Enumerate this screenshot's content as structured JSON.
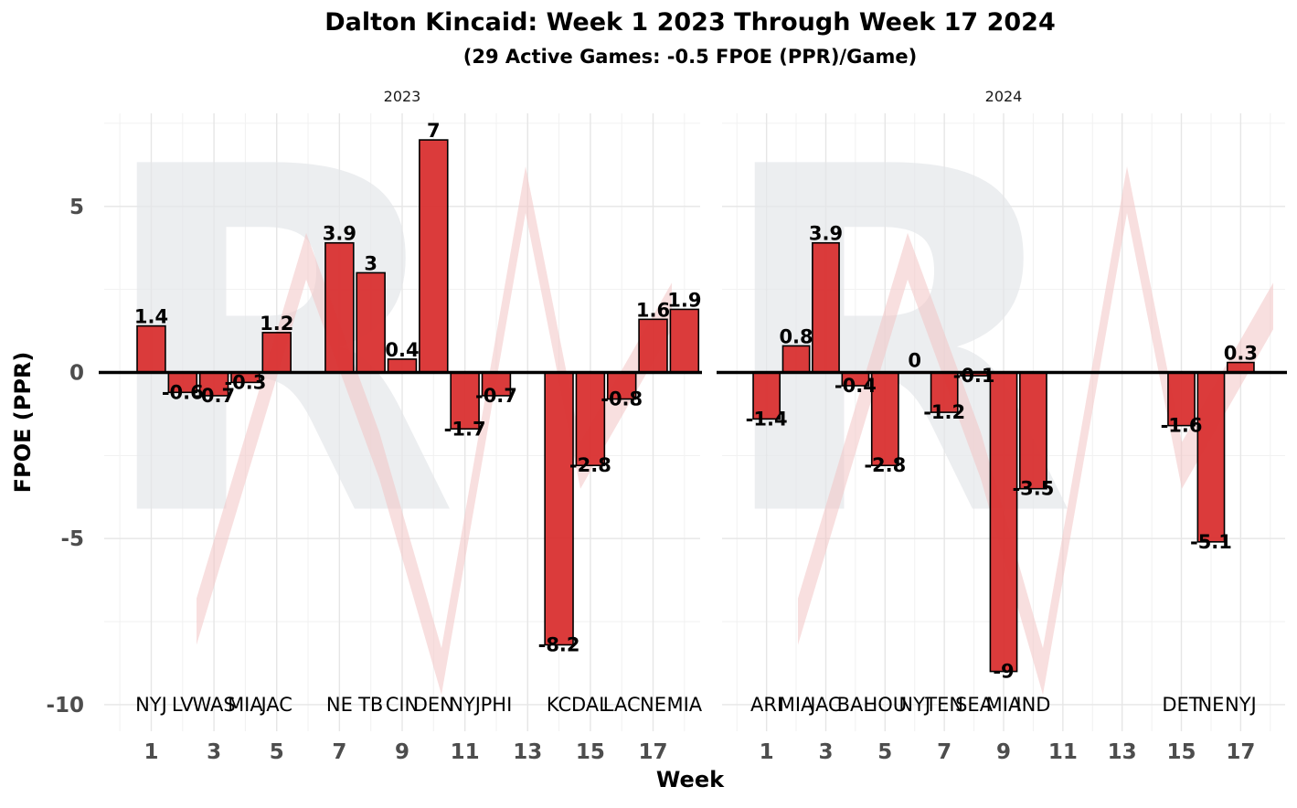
{
  "chart_data": {
    "type": "bar",
    "title": "Dalton Kincaid: Week 1 2023 Through Week 17 2024",
    "subtitle": "(29 Active Games: -0.5 FPOE (PPR)/Game)",
    "xlabel": "Week",
    "ylabel": "FPOE (PPR)",
    "ylim": [
      -10.8,
      7.8
    ],
    "yticks": [
      5,
      0,
      -5,
      -10
    ],
    "yticks_labels": [
      "5",
      "0",
      "-5",
      "-10"
    ],
    "xticks": [
      1,
      3,
      5,
      7,
      9,
      11,
      13,
      15,
      17
    ],
    "xticks_labels": [
      "1",
      "3",
      "5",
      "7",
      "9",
      "11",
      "13",
      "15",
      "17"
    ],
    "xlim": [
      -0.5,
      18.5
    ],
    "grid": true,
    "watermark_letters": "R",
    "panels": [
      {
        "label": "2023",
        "series": [
          {
            "week": 1,
            "opp": "NYJ",
            "value": 1.4,
            "label": "1.4"
          },
          {
            "week": 2,
            "opp": "LV",
            "value": -0.6,
            "label": "-0.6"
          },
          {
            "week": 3,
            "opp": "WAS",
            "value": -0.7,
            "label": "-0.7"
          },
          {
            "week": 4,
            "opp": "MIA",
            "value": -0.3,
            "label": "-0.3"
          },
          {
            "week": 5,
            "opp": "JAC",
            "value": 1.2,
            "label": "1.2"
          },
          {
            "week": 7,
            "opp": "NE",
            "value": 3.9,
            "label": "3.9"
          },
          {
            "week": 8,
            "opp": "TB",
            "value": 3.0,
            "label": "3"
          },
          {
            "week": 9,
            "opp": "CIN",
            "value": 0.4,
            "label": "0.4"
          },
          {
            "week": 10,
            "opp": "DEN",
            "value": 7.0,
            "label": "7"
          },
          {
            "week": 11,
            "opp": "NYJ",
            "value": -1.7,
            "label": "-1.7"
          },
          {
            "week": 12,
            "opp": "PHI",
            "value": -0.7,
            "label": "-0.7"
          },
          {
            "week": 14,
            "opp": "KC",
            "value": -8.2,
            "label": "-8.2"
          },
          {
            "week": 15,
            "opp": "DAL",
            "value": -2.8,
            "label": "-2.8"
          },
          {
            "week": 16,
            "opp": "LAC",
            "value": -0.8,
            "label": "-0.8"
          },
          {
            "week": 17,
            "opp": "NE",
            "value": 1.6,
            "label": "1.6"
          },
          {
            "week": 18,
            "opp": "MIA",
            "value": 1.9,
            "label": "1.9"
          }
        ]
      },
      {
        "label": "2024",
        "series": [
          {
            "week": 1,
            "opp": "ARI",
            "value": -1.4,
            "label": "-1.4"
          },
          {
            "week": 2,
            "opp": "MIA",
            "value": 0.8,
            "label": "0.8"
          },
          {
            "week": 3,
            "opp": "JAC",
            "value": 3.9,
            "label": "3.9"
          },
          {
            "week": 4,
            "opp": "BAL",
            "value": -0.4,
            "label": "-0.4"
          },
          {
            "week": 5,
            "opp": "HOU",
            "value": -2.8,
            "label": "-2.8"
          },
          {
            "week": 6,
            "opp": "NYJ",
            "value": 0.0,
            "label": "0"
          },
          {
            "week": 7,
            "opp": "TEN",
            "value": -1.2,
            "label": "-1.2"
          },
          {
            "week": 8,
            "opp": "SEA",
            "value": -0.1,
            "label": "-0.1"
          },
          {
            "week": 9,
            "opp": "MIA",
            "value": -9.0,
            "label": "-9"
          },
          {
            "week": 10,
            "opp": "IND",
            "value": -3.5,
            "label": "-3.5"
          },
          {
            "week": 15,
            "opp": "DET",
            "value": -1.6,
            "label": "-1.6"
          },
          {
            "week": 16,
            "opp": "NE",
            "value": -5.1,
            "label": "-5.1"
          },
          {
            "week": 17,
            "opp": "NYJ",
            "value": 0.3,
            "label": "0.3"
          }
        ]
      }
    ]
  }
}
